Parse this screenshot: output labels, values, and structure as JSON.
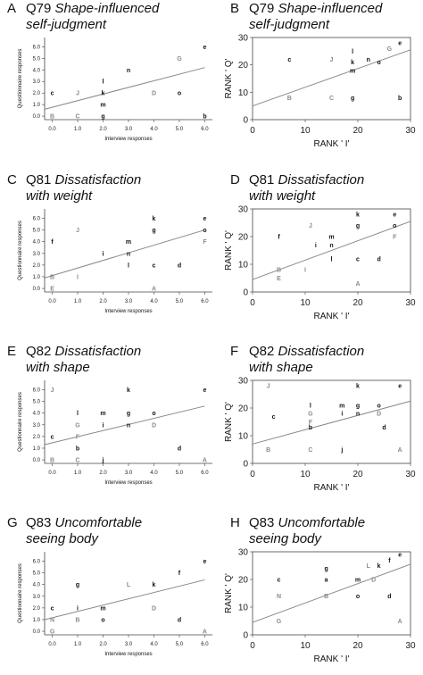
{
  "colors": {
    "axis": "#444444",
    "line": "#888888",
    "black_point": "#111111",
    "grey_point": "#8a8a8a"
  },
  "chart_data": [
    {
      "panel": "A",
      "type": "scatter",
      "title": "Q79",
      "title_italic": "Shape-influenced self-judgment",
      "xlabel": "Interview responses",
      "ylabel": "Questionnaire responses",
      "xticks": [
        "0.0",
        "1.0",
        "2.0",
        "3.0",
        "4.0",
        "5.0",
        "6.0"
      ],
      "yticks": [
        "0.0",
        "1.0",
        "2.0",
        "3.0",
        "4.0",
        "5.0",
        "6.0"
      ],
      "xlim": [
        -0.3,
        6.3
      ],
      "ylim": [
        -0.3,
        6.8
      ],
      "fit": [
        [
          -0.3,
          0.6
        ],
        [
          6.0,
          4.2
        ]
      ],
      "points": [
        {
          "label": "e",
          "x": 6,
          "y": 6
        },
        {
          "label": "G",
          "x": 5,
          "y": 5
        },
        {
          "label": "n",
          "x": 3,
          "y": 4
        },
        {
          "label": "l",
          "x": 2,
          "y": 3
        },
        {
          "label": "c",
          "x": 0,
          "y": 2
        },
        {
          "label": "J",
          "x": 1,
          "y": 2
        },
        {
          "label": "k",
          "x": 2,
          "y": 2
        },
        {
          "label": "D",
          "x": 4,
          "y": 2
        },
        {
          "label": "o",
          "x": 5,
          "y": 2
        },
        {
          "label": "m",
          "x": 2,
          "y": 1
        },
        {
          "label": "B",
          "x": 0,
          "y": 0
        },
        {
          "label": "C",
          "x": 1,
          "y": 0
        },
        {
          "label": "g",
          "x": 2,
          "y": 0
        },
        {
          "label": "b",
          "x": 6,
          "y": 0
        }
      ]
    },
    {
      "panel": "B",
      "type": "scatter",
      "title": "Q79",
      "title_italic": "Shape-influenced self-judgment",
      "xlabel": "RANK ' I'",
      "ylabel": "RANK ' Q'",
      "xticks": [
        "0",
        "10",
        "20",
        "30"
      ],
      "yticks": [
        "0",
        "10",
        "20",
        "30"
      ],
      "xlim": [
        0,
        30
      ],
      "ylim": [
        0,
        30
      ],
      "fit": [
        [
          0,
          5.0
        ],
        [
          30,
          25.5
        ]
      ],
      "points": [
        {
          "label": "e",
          "x": 28,
          "y": 28
        },
        {
          "label": "G",
          "x": 26,
          "y": 26
        },
        {
          "label": "l",
          "x": 19,
          "y": 25
        },
        {
          "label": "n",
          "x": 22,
          "y": 22
        },
        {
          "label": "c",
          "x": 7,
          "y": 22
        },
        {
          "label": "J",
          "x": 15,
          "y": 22
        },
        {
          "label": "k",
          "x": 19,
          "y": 21
        },
        {
          "label": "o",
          "x": 24,
          "y": 21
        },
        {
          "label": "m",
          "x": 19,
          "y": 18
        },
        {
          "label": "B",
          "x": 7,
          "y": 8
        },
        {
          "label": "C",
          "x": 15,
          "y": 8
        },
        {
          "label": "g",
          "x": 19,
          "y": 8
        },
        {
          "label": "b",
          "x": 28,
          "y": 8
        }
      ]
    },
    {
      "panel": "C",
      "type": "scatter",
      "title": "Q81",
      "title_italic": "Dissatisfaction with weight",
      "xlabel": "Interview responses",
      "ylabel": "Questionnaire responses",
      "xticks": [
        "0.0",
        "1.0",
        "2.0",
        "3.0",
        "4.0",
        "5.0",
        "6.0"
      ],
      "yticks": [
        "0.0",
        "1.0",
        "2.0",
        "3.0",
        "4.0",
        "5.0",
        "6.0"
      ],
      "xlim": [
        -0.3,
        6.3
      ],
      "ylim": [
        -0.3,
        6.8
      ],
      "fit": [
        [
          -0.3,
          0.9
        ],
        [
          6.0,
          5.0
        ]
      ],
      "points": [
        {
          "label": "k",
          "x": 4,
          "y": 6
        },
        {
          "label": "e",
          "x": 6,
          "y": 6
        },
        {
          "label": "J",
          "x": 1,
          "y": 5
        },
        {
          "label": "g",
          "x": 4,
          "y": 5
        },
        {
          "label": "o",
          "x": 6,
          "y": 5
        },
        {
          "label": "f",
          "x": 0,
          "y": 4
        },
        {
          "label": "m",
          "x": 3,
          "y": 4
        },
        {
          "label": "F",
          "x": 6,
          "y": 4
        },
        {
          "label": "i",
          "x": 2,
          "y": 3
        },
        {
          "label": "n",
          "x": 3,
          "y": 3
        },
        {
          "label": "l",
          "x": 3,
          "y": 2
        },
        {
          "label": "c",
          "x": 4,
          "y": 2
        },
        {
          "label": "d",
          "x": 5,
          "y": 2
        },
        {
          "label": "B",
          "x": 0,
          "y": 1
        },
        {
          "label": "I",
          "x": 1,
          "y": 1
        },
        {
          "label": "E",
          "x": 0,
          "y": 0
        },
        {
          "label": "A",
          "x": 4,
          "y": 0
        }
      ]
    },
    {
      "panel": "D",
      "type": "scatter",
      "title": "Q81",
      "title_italic": "Dissatisfaction with weight",
      "xlabel": "RANK ' I'",
      "ylabel": "RANK ' Q'",
      "xticks": [
        "0",
        "10",
        "20",
        "30"
      ],
      "yticks": [
        "0",
        "10",
        "20",
        "30"
      ],
      "xlim": [
        0,
        30
      ],
      "ylim": [
        0,
        30
      ],
      "fit": [
        [
          0,
          4.5
        ],
        [
          30,
          25.5
        ]
      ],
      "points": [
        {
          "label": "k",
          "x": 20,
          "y": 28
        },
        {
          "label": "e",
          "x": 27,
          "y": 28
        },
        {
          "label": "J",
          "x": 11,
          "y": 24
        },
        {
          "label": "g",
          "x": 20,
          "y": 24
        },
        {
          "label": "o",
          "x": 27,
          "y": 24
        },
        {
          "label": "f",
          "x": 5,
          "y": 20
        },
        {
          "label": "m",
          "x": 15,
          "y": 20
        },
        {
          "label": "F",
          "x": 27,
          "y": 20
        },
        {
          "label": "i",
          "x": 12,
          "y": 17
        },
        {
          "label": "n",
          "x": 15,
          "y": 17
        },
        {
          "label": "l",
          "x": 15,
          "y": 12
        },
        {
          "label": "c",
          "x": 20,
          "y": 12
        },
        {
          "label": "d",
          "x": 24,
          "y": 12
        },
        {
          "label": "B",
          "x": 5,
          "y": 8
        },
        {
          "label": "I",
          "x": 10,
          "y": 8
        },
        {
          "label": "E",
          "x": 5,
          "y": 5
        },
        {
          "label": "A",
          "x": 20,
          "y": 3
        }
      ]
    },
    {
      "panel": "E",
      "type": "scatter",
      "title": "Q82",
      "title_italic": "Dissatisfaction with shape",
      "xlabel": "Interview responses",
      "ylabel": "Questionnaire responses",
      "xticks": [
        "0.0",
        "1.0",
        "2.0",
        "3.0",
        "4.0",
        "5.0",
        "6.0"
      ],
      "yticks": [
        "0.0",
        "1.0",
        "2.0",
        "3.0",
        "4.0",
        "5.0",
        "6.0"
      ],
      "xlim": [
        -0.3,
        6.3
      ],
      "ylim": [
        -0.3,
        6.8
      ],
      "fit": [
        [
          -0.3,
          1.3
        ],
        [
          6.0,
          4.6
        ]
      ],
      "points": [
        {
          "label": "J",
          "x": 0,
          "y": 6
        },
        {
          "label": "k",
          "x": 3,
          "y": 6
        },
        {
          "label": "e",
          "x": 6,
          "y": 6
        },
        {
          "label": "l",
          "x": 1,
          "y": 4
        },
        {
          "label": "m",
          "x": 2,
          "y": 4
        },
        {
          "label": "g",
          "x": 3,
          "y": 4
        },
        {
          "label": "o",
          "x": 4,
          "y": 4
        },
        {
          "label": "G",
          "x": 1,
          "y": 3
        },
        {
          "label": "i",
          "x": 2,
          "y": 3
        },
        {
          "label": "n",
          "x": 3,
          "y": 3
        },
        {
          "label": "D",
          "x": 4,
          "y": 3
        },
        {
          "label": "c",
          "x": 0,
          "y": 2
        },
        {
          "label": "F",
          "x": 1,
          "y": 2
        },
        {
          "label": "b",
          "x": 1,
          "y": 1
        },
        {
          "label": "d",
          "x": 5,
          "y": 1
        },
        {
          "label": "B",
          "x": 0,
          "y": 0
        },
        {
          "label": "C",
          "x": 1,
          "y": 0
        },
        {
          "label": "j",
          "x": 2,
          "y": 0
        },
        {
          "label": "A",
          "x": 6,
          "y": 0
        }
      ]
    },
    {
      "panel": "F",
      "type": "scatter",
      "title": "Q82",
      "title_italic": "Dissatisfaction with shape",
      "xlabel": "RANK ' I'",
      "ylabel": "RANK ' Q'",
      "xticks": [
        "0",
        "10",
        "20",
        "30"
      ],
      "yticks": [
        "0",
        "10",
        "20",
        "30"
      ],
      "xlim": [
        0,
        30
      ],
      "ylim": [
        0,
        30
      ],
      "fit": [
        [
          0,
          7.0
        ],
        [
          30,
          22.5
        ]
      ],
      "points": [
        {
          "label": "J",
          "x": 3,
          "y": 28
        },
        {
          "label": "k",
          "x": 20,
          "y": 28
        },
        {
          "label": "e",
          "x": 28,
          "y": 28
        },
        {
          "label": "l",
          "x": 11,
          "y": 21
        },
        {
          "label": "m",
          "x": 17,
          "y": 21
        },
        {
          "label": "g",
          "x": 20,
          "y": 21
        },
        {
          "label": "o",
          "x": 24,
          "y": 21
        },
        {
          "label": "c",
          "x": 4,
          "y": 17
        },
        {
          "label": "G",
          "x": 11,
          "y": 18
        },
        {
          "label": "i",
          "x": 17,
          "y": 18
        },
        {
          "label": "n",
          "x": 20,
          "y": 18
        },
        {
          "label": "D",
          "x": 24,
          "y": 18
        },
        {
          "label": "F",
          "x": 11,
          "y": 15
        },
        {
          "label": "b",
          "x": 11,
          "y": 13
        },
        {
          "label": "d",
          "x": 25,
          "y": 13
        },
        {
          "label": "B",
          "x": 3,
          "y": 5
        },
        {
          "label": "C",
          "x": 11,
          "y": 5
        },
        {
          "label": "j",
          "x": 17,
          "y": 5
        },
        {
          "label": "A",
          "x": 28,
          "y": 5
        }
      ]
    },
    {
      "panel": "G",
      "type": "scatter",
      "title": "Q83",
      "title_italic": "Uncomfortable seeing body",
      "xlabel": "Interview responses",
      "ylabel": "Questionnaire responses",
      "xticks": [
        "0.0",
        "1.0",
        "2.0",
        "3.0",
        "4.0",
        "5.0",
        "6.0"
      ],
      "yticks": [
        "0.0",
        "1.0",
        "2.0",
        "3.0",
        "4.0",
        "5.0",
        "6.0"
      ],
      "xlim": [
        -0.3,
        6.3
      ],
      "ylim": [
        -0.3,
        6.8
      ],
      "fit": [
        [
          -0.3,
          1.0
        ],
        [
          6.0,
          4.4
        ]
      ],
      "points": [
        {
          "label": "e",
          "x": 6,
          "y": 6
        },
        {
          "label": "f",
          "x": 5,
          "y": 5
        },
        {
          "label": "g",
          "x": 1,
          "y": 4
        },
        {
          "label": "L",
          "x": 3,
          "y": 4
        },
        {
          "label": "k",
          "x": 4,
          "y": 4
        },
        {
          "label": "c",
          "x": 0,
          "y": 2
        },
        {
          "label": "i",
          "x": 1,
          "y": 2
        },
        {
          "label": "m",
          "x": 2,
          "y": 2
        },
        {
          "label": "D",
          "x": 4,
          "y": 2
        },
        {
          "label": "N",
          "x": 0,
          "y": 1
        },
        {
          "label": "B",
          "x": 1,
          "y": 1
        },
        {
          "label": "o",
          "x": 2,
          "y": 1
        },
        {
          "label": "d",
          "x": 5,
          "y": 1
        },
        {
          "label": "G",
          "x": 0,
          "y": 0
        },
        {
          "label": "A",
          "x": 6,
          "y": 0
        }
      ]
    },
    {
      "panel": "H",
      "type": "scatter",
      "title": "Q83",
      "title_italic": "Uncomfortable seeing body",
      "xlabel": "RANK ' I'",
      "ylabel": "RANK ' Q'",
      "xticks": [
        "0",
        "10",
        "20",
        "30"
      ],
      "yticks": [
        "0",
        "10",
        "20",
        "30"
      ],
      "xlim": [
        0,
        30
      ],
      "ylim": [
        0,
        30
      ],
      "fit": [
        [
          0,
          4.5
        ],
        [
          30,
          25.5
        ]
      ],
      "points": [
        {
          "label": "e",
          "x": 28,
          "y": 29
        },
        {
          "label": "f",
          "x": 26,
          "y": 27
        },
        {
          "label": "L",
          "x": 22,
          "y": 25
        },
        {
          "label": "k",
          "x": 24,
          "y": 25
        },
        {
          "label": "g",
          "x": 14,
          "y": 24
        },
        {
          "label": "c",
          "x": 5,
          "y": 20
        },
        {
          "label": "a",
          "x": 14,
          "y": 20
        },
        {
          "label": "m",
          "x": 20,
          "y": 20
        },
        {
          "label": "D",
          "x": 23,
          "y": 20
        },
        {
          "label": "N",
          "x": 5,
          "y": 14
        },
        {
          "label": "B",
          "x": 14,
          "y": 14
        },
        {
          "label": "o",
          "x": 20,
          "y": 14
        },
        {
          "label": "d",
          "x": 26,
          "y": 14
        },
        {
          "label": "G",
          "x": 5,
          "y": 5
        },
        {
          "label": "A",
          "x": 28,
          "y": 5
        }
      ]
    }
  ]
}
